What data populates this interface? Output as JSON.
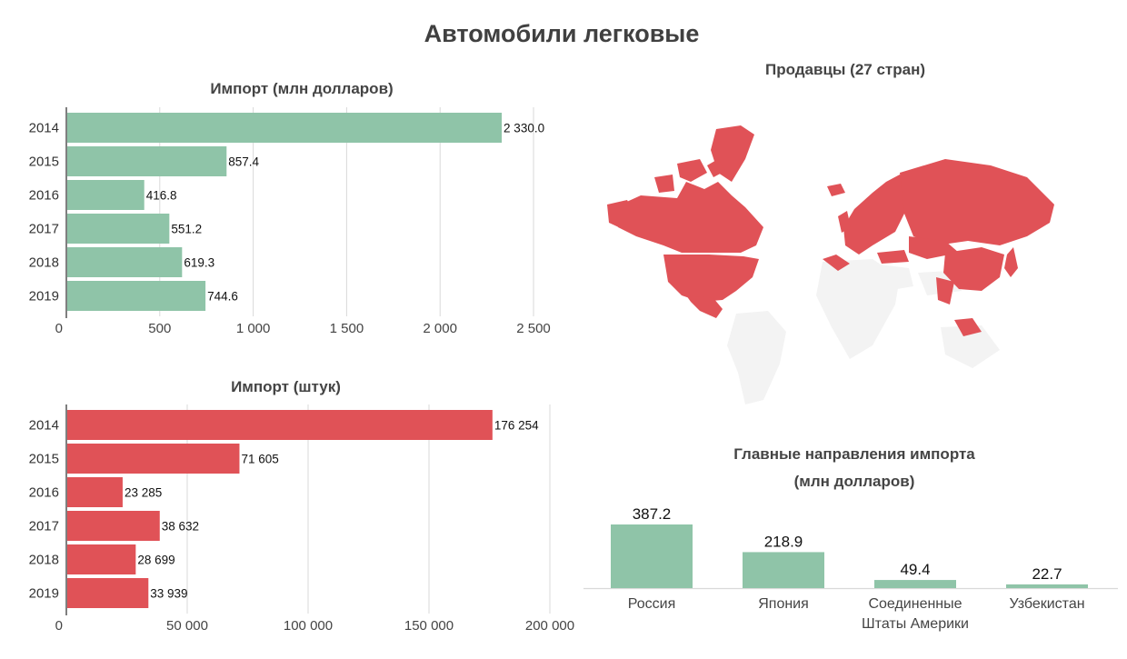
{
  "page_title": "Автомобили легковые",
  "colors": {
    "green": "#8fc4a8",
    "red": "#e05257",
    "map_base": "#f3f3f3",
    "grid": "#d9d9d9",
    "axis": "#555555"
  },
  "chart_data": [
    {
      "id": "import_usd",
      "type": "bar",
      "orientation": "horizontal",
      "title": "Импорт (млн долларов)",
      "categories": [
        "2014",
        "2015",
        "2016",
        "2017",
        "2018",
        "2019"
      ],
      "values": [
        2330.0,
        857.4,
        416.8,
        551.2,
        619.3,
        744.6
      ],
      "value_labels": [
        "2 330.0",
        "857.4",
        "416.8",
        "551.2",
        "619.3",
        "744.6"
      ],
      "xlim": [
        0,
        2500
      ],
      "ticks": [
        0,
        500,
        1000,
        1500,
        2000,
        2500
      ],
      "tick_labels": [
        "0",
        "500",
        "1 000",
        "1 500",
        "2 000",
        "2 500"
      ],
      "grid": true,
      "color": "#8fc4a8"
    },
    {
      "id": "import_units",
      "type": "bar",
      "orientation": "horizontal",
      "title": "Импорт (штук)",
      "categories": [
        "2014",
        "2015",
        "2016",
        "2017",
        "2018",
        "2019"
      ],
      "values": [
        176254,
        71605,
        23285,
        38632,
        28699,
        33939
      ],
      "value_labels": [
        "176 254",
        "71 605",
        "23 285",
        "38 632",
        "28 699",
        "33 939"
      ],
      "xlim": [
        0,
        200000
      ],
      "ticks": [
        0,
        50000,
        100000,
        150000,
        200000
      ],
      "tick_labels": [
        "0",
        "50 000",
        "100 000",
        "150 000",
        "200 000"
      ],
      "grid": true,
      "color": "#e05257"
    },
    {
      "id": "top_destinations",
      "type": "bar",
      "orientation": "vertical",
      "title": "Главные направления импорта",
      "subtitle": "(млн долларов)",
      "categories": [
        "Россия",
        "Япония",
        "Соединенные Штаты Америки",
        "Узбекистан"
      ],
      "category_lines": [
        [
          "Россия"
        ],
        [
          "Япония"
        ],
        [
          "Соединенные",
          "Штаты Америки"
        ],
        [
          "Узбекистан"
        ]
      ],
      "values": [
        387.2,
        218.9,
        49.4,
        22.7
      ],
      "value_labels": [
        "387.2",
        "218.9",
        "49.4",
        "22.7"
      ],
      "ylim": [
        0,
        387.2
      ],
      "grid": false,
      "color": "#8fc4a8"
    }
  ],
  "map": {
    "title": "Продавцы (27 стран)",
    "highlight_color": "#e05257",
    "highlighted_regions": [
      "Canada",
      "United States",
      "Greenland",
      "Russia",
      "Europe",
      "China",
      "Japan",
      "South Korea",
      "Turkey",
      "Taiwan"
    ]
  }
}
